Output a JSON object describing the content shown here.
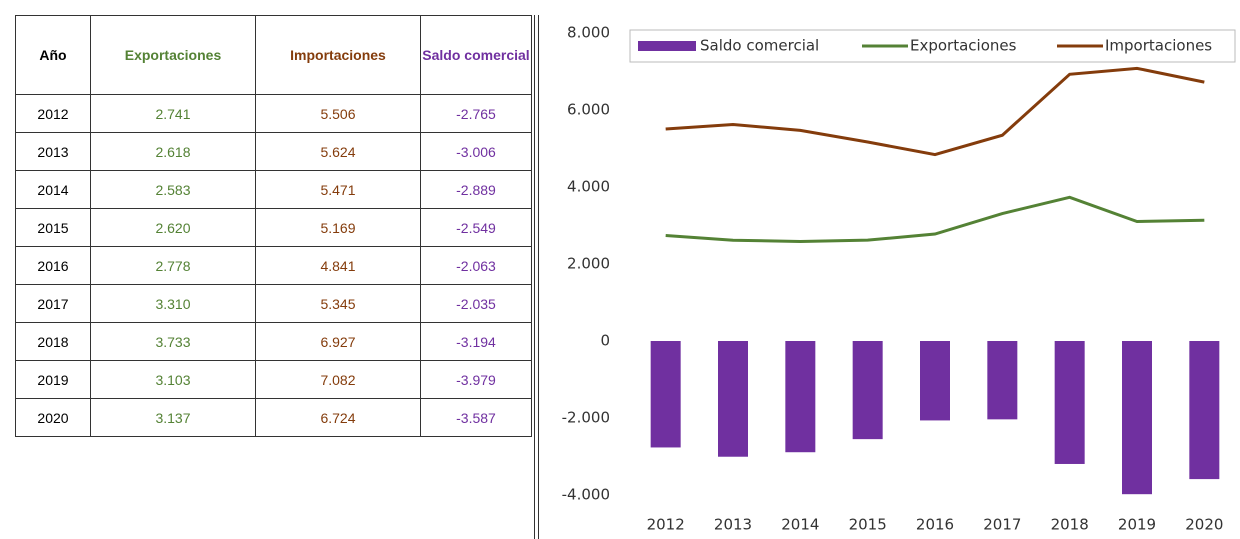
{
  "table": {
    "header": [
      "Año",
      "Exportaciones",
      "Importaciones",
      "Saldo comercial"
    ],
    "rows": [
      [
        "2012",
        "2.741",
        "5.506",
        "-2.765"
      ],
      [
        "2013",
        "2.618",
        "5.624",
        "-3.006"
      ],
      [
        "2014",
        "2.583",
        "5.471",
        "-2.889"
      ],
      [
        "2015",
        "2.620",
        "5.169",
        "-2.549"
      ],
      [
        "2016",
        "2.778",
        "4.841",
        "-2.063"
      ],
      [
        "2017",
        "3.310",
        "5.345",
        "-2.035"
      ],
      [
        "2018",
        "3.733",
        "6.927",
        "-3.194"
      ],
      [
        "2019",
        "3.103",
        "7.082",
        "-3.979"
      ],
      [
        "2020",
        "3.137",
        "6.724",
        "-3.587"
      ]
    ]
  },
  "chart_data": {
    "type": "bar_line",
    "categories": [
      "2012",
      "2013",
      "2014",
      "2015",
      "2016",
      "2017",
      "2018",
      "2019",
      "2020"
    ],
    "series": [
      {
        "name": "Saldo comercial",
        "type": "bar",
        "color": "#7030a0",
        "values": [
          -2765,
          -3006,
          -2889,
          -2549,
          -2063,
          -2035,
          -3194,
          -3979,
          -3587
        ]
      },
      {
        "name": "Exportaciones",
        "type": "line",
        "color": "#548235",
        "values": [
          2741,
          2618,
          2583,
          2620,
          2778,
          3310,
          3733,
          3103,
          3137
        ]
      },
      {
        "name": "Importaciones",
        "type": "line",
        "color": "#843c0c",
        "values": [
          5506,
          5624,
          5471,
          5169,
          4841,
          5345,
          6927,
          7082,
          6724
        ]
      }
    ],
    "ylim": [
      -4000,
      8000
    ],
    "yticks": [
      {
        "value": -4000,
        "label": "-4.000"
      },
      {
        "value": -2000,
        "label": "-2.000"
      },
      0,
      {
        "value": 2000,
        "label": "2.000"
      },
      {
        "value": 4000,
        "label": "4.000"
      },
      {
        "value": 6000,
        "label": "6.000"
      },
      {
        "value": 8000,
        "label": "8.000"
      }
    ],
    "legend": "top"
  }
}
